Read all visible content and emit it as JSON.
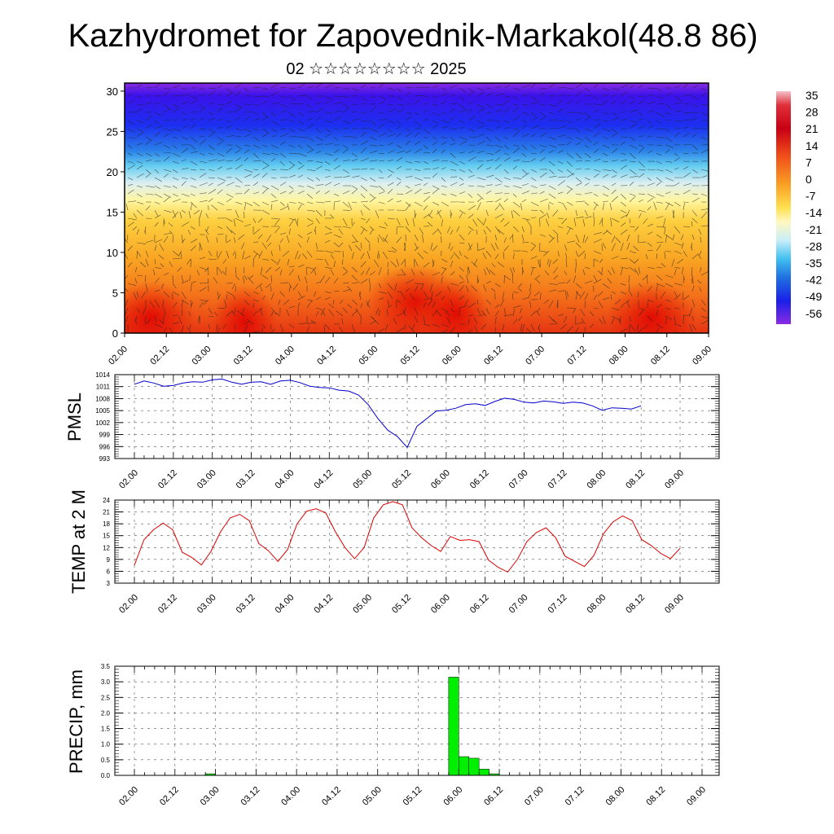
{
  "header": {
    "title": "Kazhydromet for Zapovednik-Markakol(48.8 86)",
    "subtitle": "02 ☆☆☆☆☆☆☆☆ 2025"
  },
  "chart_data": [
    {
      "type": "heatmap",
      "name": "cross-section",
      "y_ticks": [
        0,
        5,
        10,
        15,
        20,
        25,
        30
      ],
      "ylim": [
        0,
        31
      ],
      "x_ticks": [
        "02.00",
        "02.12",
        "03.00",
        "03.12",
        "04.00",
        "04.12",
        "05.00",
        "05.12",
        "06.00",
        "06.12",
        "07.00",
        "07.12",
        "08.00",
        "08.12",
        "09.00"
      ],
      "colorbar_labels": [
        "35",
        "28",
        "21",
        "14",
        "7",
        "0",
        "-7",
        "-14",
        "-21",
        "-28",
        "-35",
        "-42",
        "-49",
        "-56"
      ],
      "colorbar_range": [
        -60,
        38
      ],
      "colors": [
        "#8a2be2",
        "#1a10e8",
        "#2b7de9",
        "#5dd3f0",
        "#f4fae0",
        "#ffe45a",
        "#fbb02a",
        "#f36a10",
        "#e81a10",
        "#b80014",
        "#f4c0c8"
      ]
    },
    {
      "type": "line",
      "ylabel": "PMSL",
      "ylim": [
        993,
        1014
      ],
      "y_ticks": [
        993,
        996,
        999,
        1002,
        1005,
        1008,
        1011,
        1014
      ],
      "x_ticks": [
        "02.00",
        "02.12",
        "03.00",
        "03.12",
        "04.00",
        "04.12",
        "05.00",
        "05.12",
        "06.00",
        "06.12",
        "07.00",
        "07.12",
        "08.00",
        "08.12",
        "09.00"
      ],
      "color": "#0000cc",
      "values": [
        1011.6,
        1012.4,
        1011.9,
        1011.1,
        1011.3,
        1011.9,
        1012.2,
        1012.1,
        1012.7,
        1012.9,
        1012.1,
        1011.6,
        1012.1,
        1012.2,
        1011.6,
        1012.4,
        1012.6,
        1012.0,
        1011.1,
        1010.8,
        1010.7,
        1010.1,
        1009.9,
        1008.9,
        1006.5,
        1003.0,
        1000.1,
        998.5,
        995.8,
        1001.1,
        1003.0,
        1004.9,
        1005.1,
        1005.6,
        1006.5,
        1006.7,
        1006.3,
        1007.3,
        1008.1,
        1007.8,
        1007.1,
        1006.9,
        1007.4,
        1007.2,
        1006.8,
        1007.1,
        1006.9,
        1006.2,
        1005.1,
        1005.7,
        1005.6,
        1005.4,
        1006.2
      ]
    },
    {
      "type": "line",
      "ylabel": "TEMP at 2 M",
      "ylim": [
        3,
        24
      ],
      "y_ticks": [
        3,
        6,
        9,
        12,
        15,
        18,
        21,
        24
      ],
      "x_ticks": [
        "02.00",
        "02.12",
        "03.00",
        "03.12",
        "04.00",
        "04.12",
        "05.00",
        "05.12",
        "06.00",
        "06.12",
        "07.00",
        "07.12",
        "08.00",
        "08.12",
        "09.00"
      ],
      "color": "#dd0000",
      "values": [
        7.5,
        14.0,
        16.5,
        18.2,
        16.5,
        10.8,
        9.5,
        7.6,
        11.0,
        16.0,
        19.5,
        20.4,
        18.8,
        13.0,
        11.2,
        8.5,
        11.5,
        18.0,
        21.2,
        21.8,
        20.7,
        16.0,
        12.0,
        9.2,
        12.0,
        19.5,
        22.8,
        23.6,
        22.8,
        17.0,
        14.5,
        12.5,
        11.0,
        14.8,
        13.8,
        14.0,
        13.5,
        8.8,
        7.0,
        5.8,
        9.0,
        13.5,
        15.8,
        17.0,
        14.5,
        9.8,
        8.5,
        7.2,
        10.0,
        15.5,
        18.5,
        20.0,
        18.8,
        14.0,
        12.5,
        10.5,
        9.2,
        11.8
      ]
    },
    {
      "type": "bar",
      "ylabel": "PRECIP, mm",
      "ylim": [
        0,
        3.5
      ],
      "y_ticks": [
        "0.0",
        "0.5",
        "1.0",
        "1.5",
        "2.0",
        "2.5",
        "3.0",
        "3.5"
      ],
      "x_ticks": [
        "02.00",
        "02.12",
        "03.00",
        "03.12",
        "04.00",
        "04.12",
        "05.00",
        "05.12",
        "06.00",
        "06.12",
        "07.00",
        "07.12",
        "08.00",
        "08.12",
        "09.00"
      ],
      "color": "#00ee00",
      "bars": [
        {
          "hour": 21,
          "value": 0.05
        },
        {
          "hour": 93,
          "value": 3.15
        },
        {
          "hour": 96,
          "value": 0.6
        },
        {
          "hour": 99,
          "value": 0.55
        },
        {
          "hour": 102,
          "value": 0.2
        },
        {
          "hour": 105,
          "value": 0.05
        }
      ]
    }
  ]
}
